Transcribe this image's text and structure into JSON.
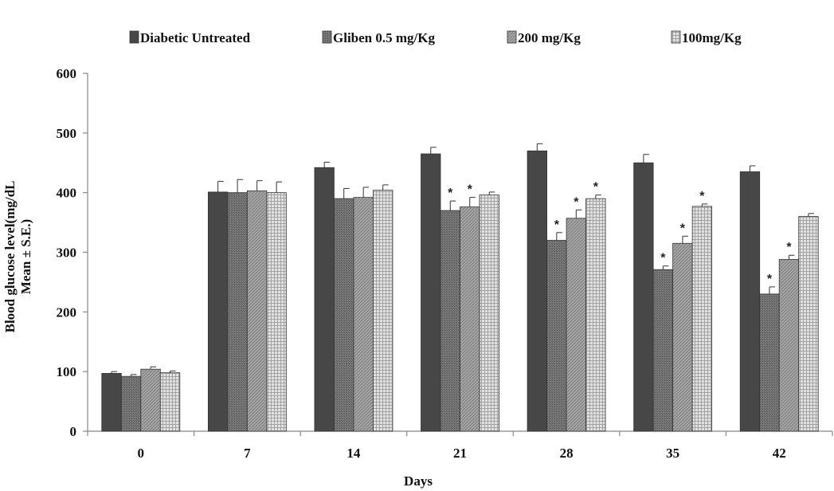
{
  "chart_data": {
    "type": "bar",
    "title": "",
    "xlabel": "Days",
    "ylabel_lines": [
      "Blood glucose level(mg/dL",
      "Mean ± S.E.)"
    ],
    "ylim": [
      0,
      600
    ],
    "yticks": [
      0,
      100,
      200,
      300,
      400,
      500,
      600
    ],
    "grid": false,
    "legend_position": "top",
    "categories": [
      "0",
      "7",
      "14",
      "21",
      "28",
      "35",
      "42"
    ],
    "series": [
      {
        "name": "Diabetic Untreated",
        "color": "#474747",
        "pattern": "solid",
        "values": [
          97,
          401,
          442,
          465,
          470,
          450,
          435
        ],
        "errors": [
          3,
          18,
          9,
          11,
          12,
          14,
          10
        ],
        "significant": [
          false,
          false,
          false,
          false,
          false,
          false,
          false
        ]
      },
      {
        "name": "Gliben 0.5 mg/Kg",
        "color": "#6a6a6a",
        "pattern": "fine-hatch",
        "values": [
          92,
          400,
          390,
          370,
          320,
          271,
          230
        ],
        "errors": [
          3,
          22,
          17,
          16,
          13,
          6,
          12
        ],
        "significant": [
          false,
          false,
          false,
          true,
          true,
          true,
          true
        ]
      },
      {
        "name": "200 mg/Kg",
        "color": "#9a9a9a",
        "pattern": "diagonal",
        "values": [
          104,
          403,
          392,
          376,
          357,
          315,
          288
        ],
        "errors": [
          4,
          17,
          17,
          16,
          14,
          12,
          7
        ],
        "significant": [
          false,
          false,
          false,
          true,
          true,
          true,
          true
        ]
      },
      {
        "name": "100mg/Kg",
        "color": "#d0d0d0",
        "pattern": "grid",
        "values": [
          98,
          400,
          404,
          396,
          390,
          377,
          360
        ],
        "errors": [
          3,
          18,
          9,
          5,
          6,
          4,
          5
        ],
        "significant": [
          false,
          false,
          false,
          false,
          true,
          true,
          false
        ]
      }
    ],
    "significance_marker": "*"
  }
}
